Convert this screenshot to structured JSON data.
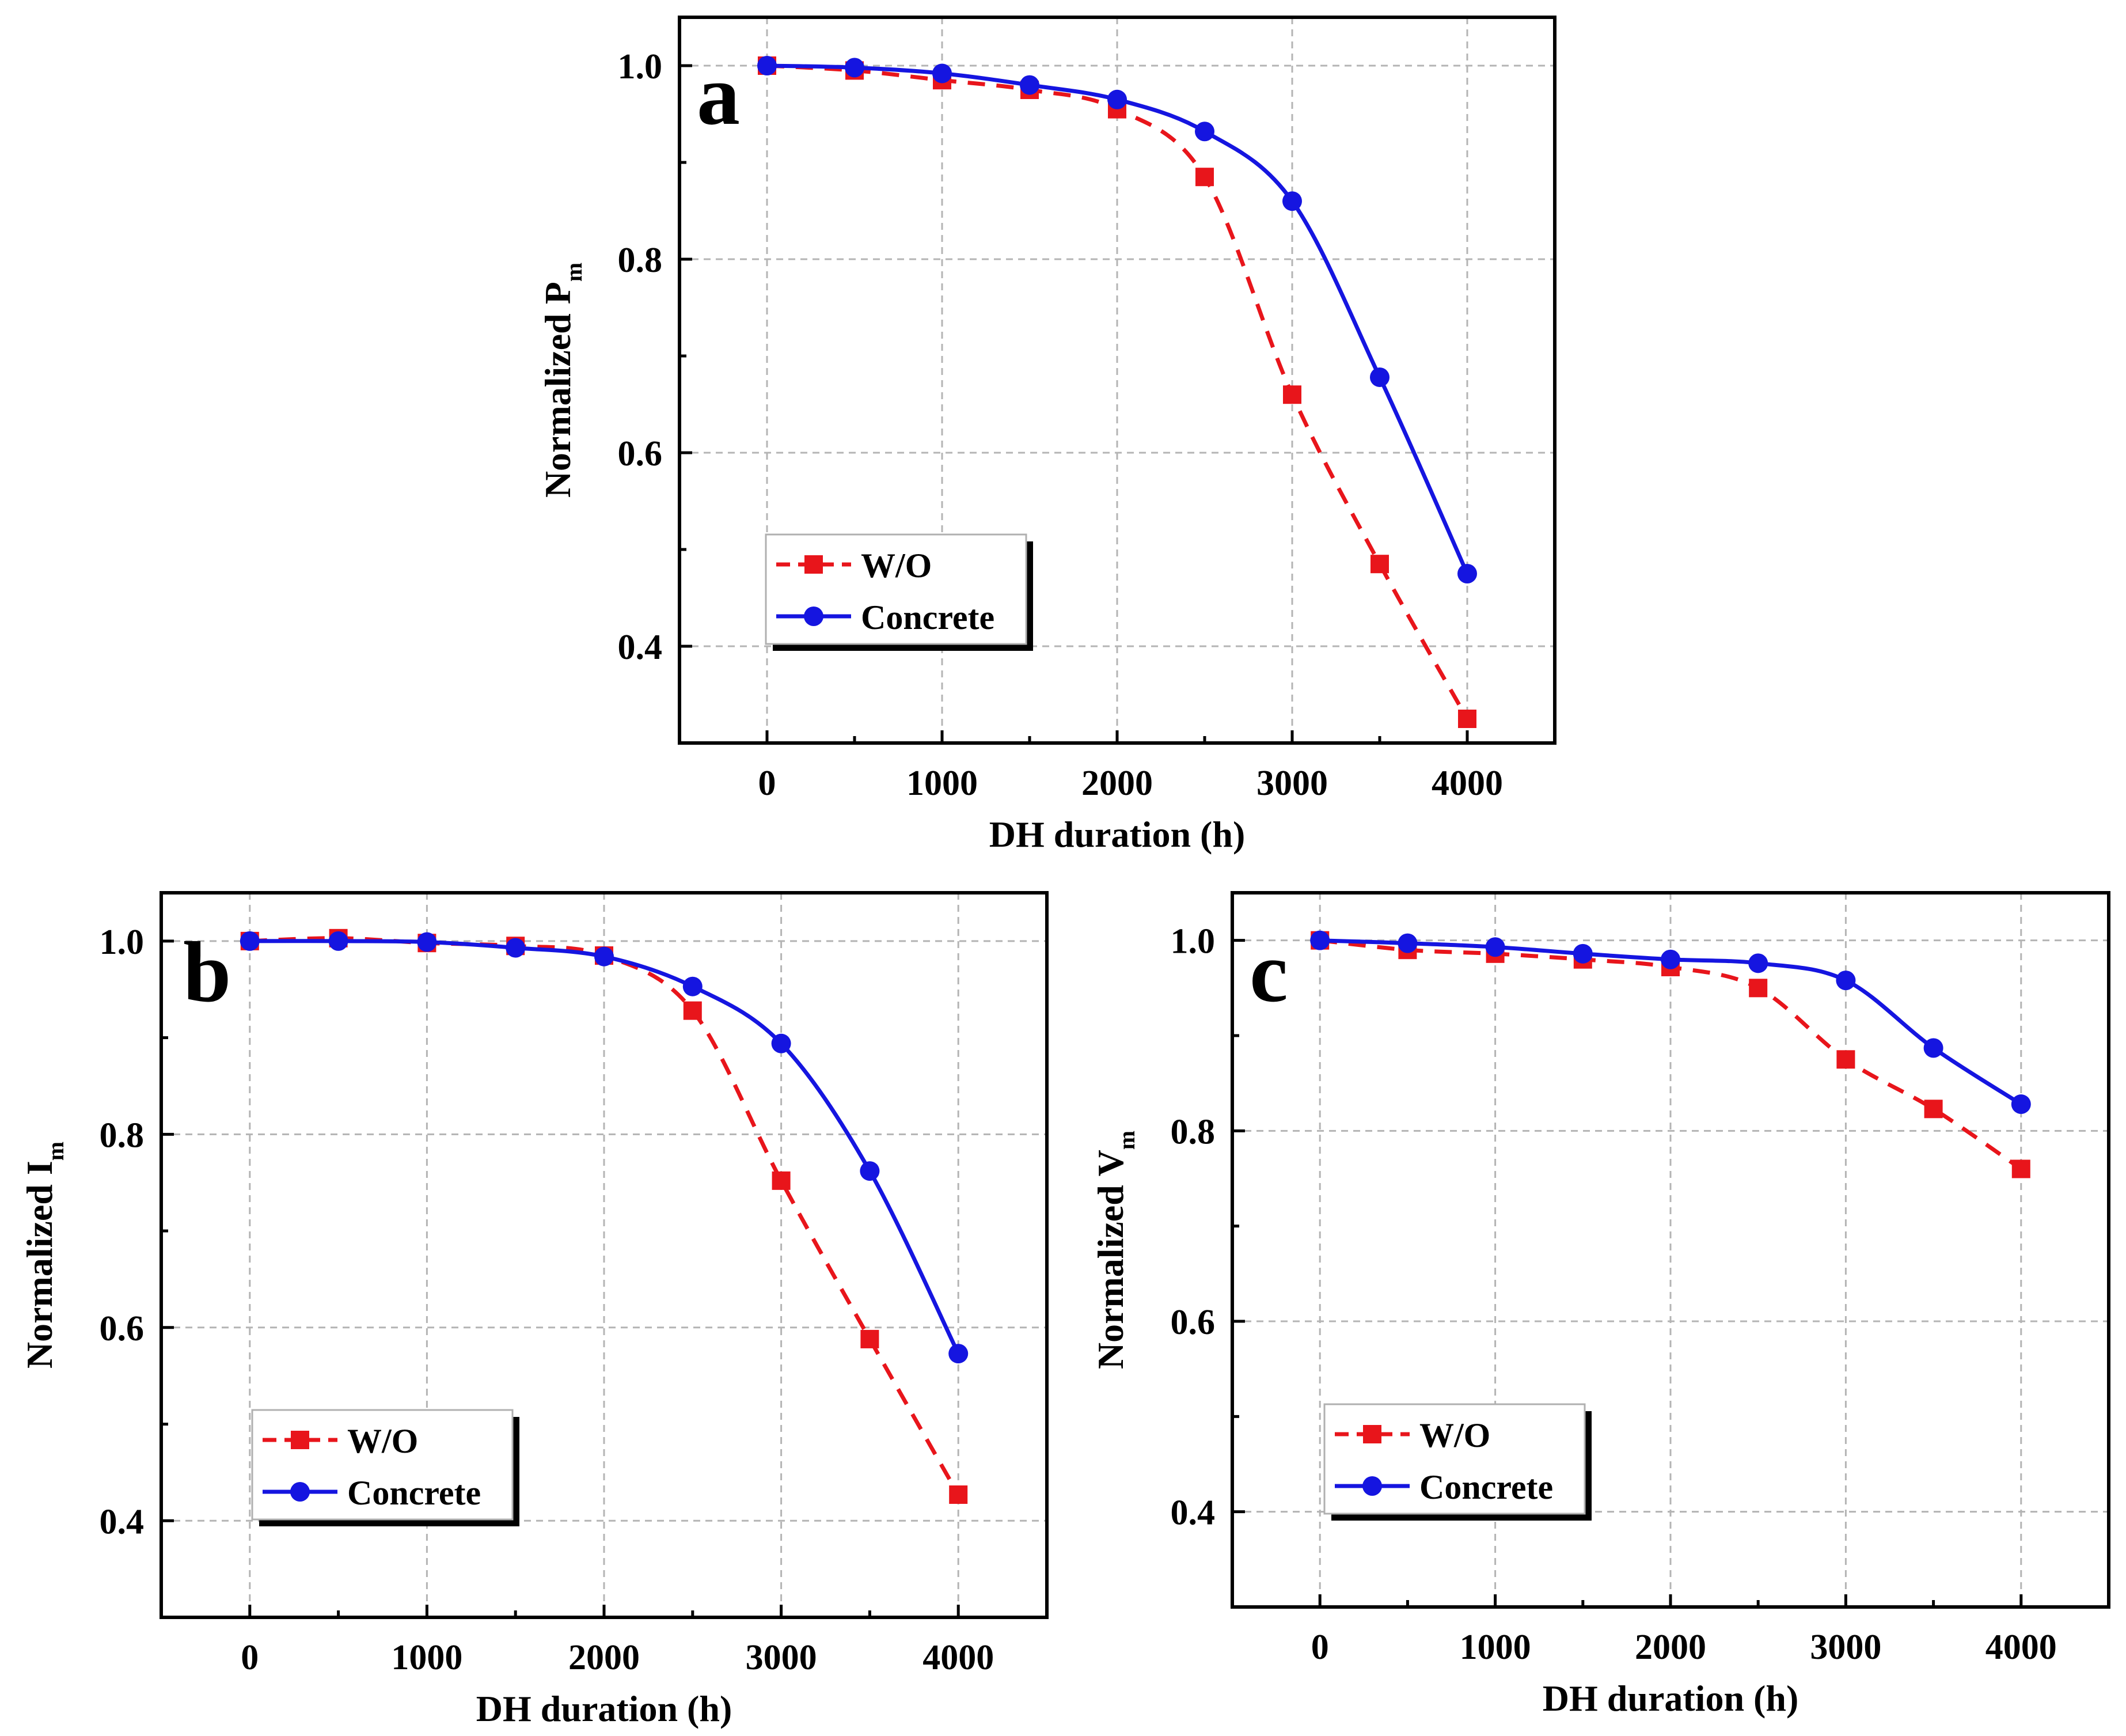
{
  "chart_data": [
    {
      "panel": "a",
      "type": "line",
      "title": "",
      "xlabel": "DH duration (h)",
      "ylabel": "Normalized  P",
      "ylabel_subscript": "m",
      "xlim": [
        -500,
        4500
      ],
      "ylim": [
        0.3,
        1.05
      ],
      "xticks": [
        0,
        1000,
        2000,
        3000,
        4000
      ],
      "yticks": [
        0.4,
        0.6,
        0.8,
        1.0
      ],
      "xtick_labels": [
        "0",
        "1000",
        "2000",
        "3000",
        "4000"
      ],
      "ytick_labels": [
        "0.4",
        "0.6",
        "0.8",
        "1.0"
      ],
      "grid": true,
      "legend_position": "bottom-left",
      "x": [
        0,
        500,
        1000,
        1500,
        2000,
        2500,
        3000,
        3500,
        4000
      ],
      "series": [
        {
          "name": "W/O",
          "values": [
            1.0,
            0.995,
            0.985,
            0.975,
            0.955,
            0.885,
            0.66,
            0.485,
            0.325
          ],
          "color": "#e8151b",
          "marker": "square",
          "line": "dashed"
        },
        {
          "name": "Concrete",
          "values": [
            1.0,
            0.998,
            0.992,
            0.98,
            0.965,
            0.932,
            0.86,
            0.678,
            0.475
          ],
          "color": "#1515e0",
          "marker": "circle",
          "line": "solid"
        }
      ]
    },
    {
      "panel": "b",
      "type": "line",
      "title": "",
      "xlabel": "DH duration (h)",
      "ylabel": "Normalized  I",
      "ylabel_subscript": "m",
      "xlim": [
        -500,
        4500
      ],
      "ylim": [
        0.3,
        1.05
      ],
      "xticks": [
        0,
        1000,
        2000,
        3000,
        4000
      ],
      "yticks": [
        0.4,
        0.6,
        0.8,
        1.0
      ],
      "xtick_labels": [
        "0",
        "1000",
        "2000",
        "3000",
        "4000"
      ],
      "ytick_labels": [
        "0.4",
        "0.6",
        "0.8",
        "1.0"
      ],
      "grid": true,
      "legend_position": "bottom-left",
      "x": [
        0,
        500,
        1000,
        1500,
        2000,
        2500,
        3000,
        3500,
        4000
      ],
      "series": [
        {
          "name": "W/O",
          "values": [
            1.0,
            1.003,
            0.998,
            0.995,
            0.985,
            0.928,
            0.752,
            0.588,
            0.427
          ],
          "color": "#e8151b",
          "marker": "square",
          "line": "dashed"
        },
        {
          "name": "Concrete",
          "values": [
            1.0,
            1.0,
            0.999,
            0.993,
            0.984,
            0.953,
            0.894,
            0.762,
            0.573
          ],
          "color": "#1515e0",
          "marker": "circle",
          "line": "solid"
        }
      ]
    },
    {
      "panel": "c",
      "type": "line",
      "title": "",
      "xlabel": "DH duration (h)",
      "ylabel": "Normalized  V",
      "ylabel_subscript": "m",
      "xlim": [
        -500,
        4500
      ],
      "ylim": [
        0.3,
        1.05
      ],
      "xticks": [
        0,
        1000,
        2000,
        3000,
        4000
      ],
      "yticks": [
        0.4,
        0.6,
        0.8,
        1.0
      ],
      "xtick_labels": [
        "0",
        "1000",
        "2000",
        "3000",
        "4000"
      ],
      "ytick_labels": [
        "0.4",
        "0.6",
        "0.8",
        "1.0"
      ],
      "grid": true,
      "legend_position": "bottom-left",
      "x": [
        0,
        500,
        1000,
        1500,
        2000,
        2500,
        3000,
        3500,
        4000
      ],
      "series": [
        {
          "name": "W/O",
          "values": [
            1.0,
            0.99,
            0.986,
            0.98,
            0.972,
            0.95,
            0.875,
            0.823,
            0.76
          ],
          "color": "#e8151b",
          "marker": "square",
          "line": "dashed"
        },
        {
          "name": "Concrete",
          "values": [
            1.0,
            0.997,
            0.993,
            0.986,
            0.98,
            0.976,
            0.958,
            0.887,
            0.828
          ],
          "color": "#1515e0",
          "marker": "circle",
          "line": "solid"
        }
      ]
    }
  ]
}
